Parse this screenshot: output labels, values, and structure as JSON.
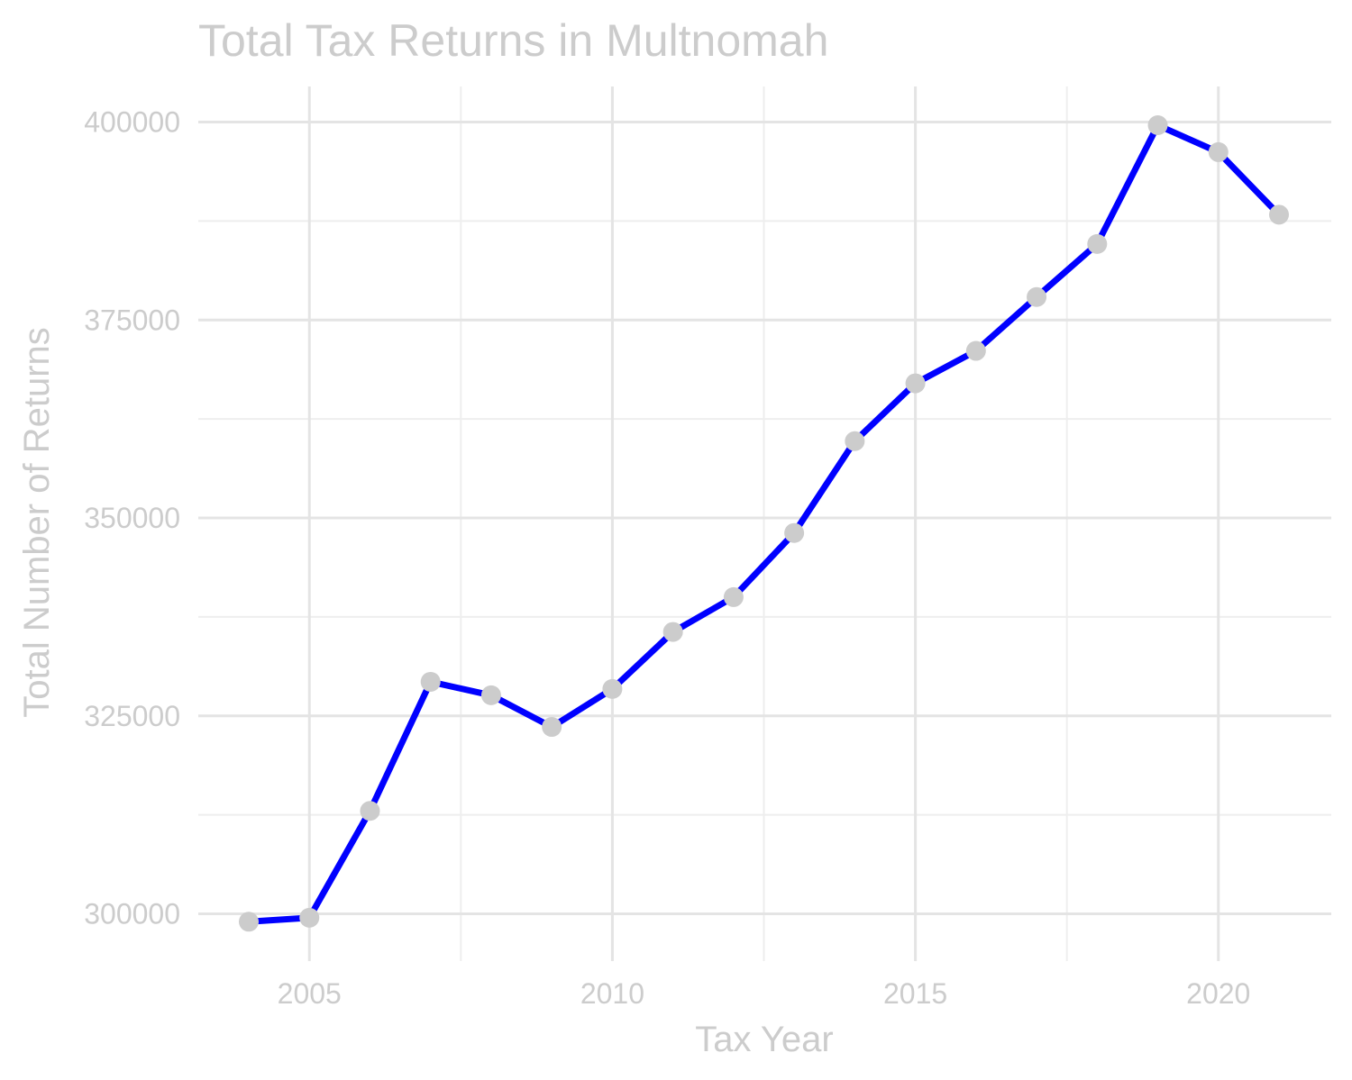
{
  "chart_data": {
    "type": "line",
    "title": "Total Tax Returns in Multnomah",
    "xlabel": "Tax Year",
    "ylabel": "Total Number of Returns",
    "x": [
      2004,
      2005,
      2006,
      2007,
      2008,
      2009,
      2010,
      2011,
      2012,
      2013,
      2014,
      2015,
      2016,
      2017,
      2018,
      2019,
      2020,
      2021
    ],
    "series": [
      {
        "values": [
          299000,
          299500,
          313000,
          329300,
          327600,
          323600,
          328400,
          335600,
          340000,
          348100,
          359700,
          367000,
          371100,
          377900,
          384600,
          399600,
          396200,
          388300
        ]
      }
    ],
    "xlim": [
      2004,
      2021
    ],
    "ylim": [
      295500,
      404500
    ],
    "x_ticks": [
      2005,
      2010,
      2015,
      2020
    ],
    "x_minor_ticks": [
      2007.5,
      2012.5,
      2017.5
    ],
    "y_ticks": [
      300000,
      325000,
      350000,
      375000,
      400000
    ],
    "y_minor_ticks": [
      312500,
      337500,
      362500,
      387500
    ],
    "grid": true,
    "legend": "none",
    "colors": {
      "line": "#0000ff",
      "points": "#cccccc",
      "text": "#cccccc",
      "grid": "#e4e4e4"
    }
  }
}
